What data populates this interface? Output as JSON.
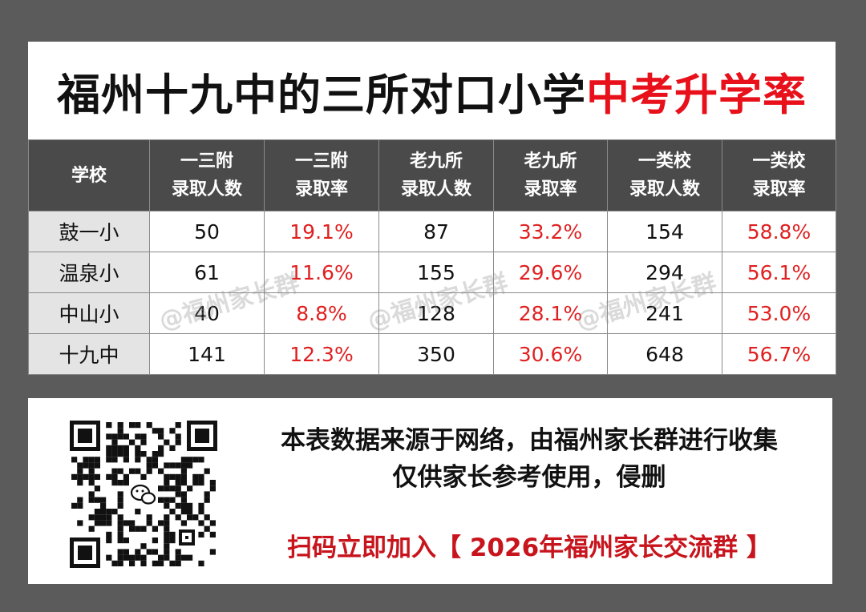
{
  "title": {
    "main": "福州十九中的三所对口小学",
    "highlight": "中考升学率"
  },
  "table": {
    "headers": [
      [
        "学校"
      ],
      [
        "一三附",
        "录取人数"
      ],
      [
        "一三附",
        "录取率"
      ],
      [
        "老九所",
        "录取人数"
      ],
      [
        "老九所",
        "录取率"
      ],
      [
        "一类校",
        "录取人数"
      ],
      [
        "一类校",
        "录取率"
      ]
    ],
    "rows": [
      [
        "鼓一小",
        "50",
        "19.1%",
        "87",
        "33.2%",
        "154",
        "58.8%"
      ],
      [
        "温泉小",
        "61",
        "11.6%",
        "155",
        "29.6%",
        "294",
        "56.1%"
      ],
      [
        "中山小",
        "40",
        "8.8%",
        "128",
        "28.1%",
        "241",
        "53.0%"
      ],
      [
        "十九中",
        "141",
        "12.3%",
        "350",
        "30.6%",
        "648",
        "56.7%"
      ]
    ]
  },
  "watermark": "@福州家长群",
  "footer": {
    "note_line1": "本表数据来源于网络，由福州家长群进行收集",
    "note_line2": "仅供家长参考使用，侵删",
    "join": "扫码立即加入【 2026年福州家长交流群 】"
  },
  "qr_center_icon": "wechat-icon",
  "colors": {
    "accent": "#e8101a",
    "header_bg": "#4a4a4a",
    "school_bg": "#e4e4e4",
    "rate": "#e02020"
  }
}
